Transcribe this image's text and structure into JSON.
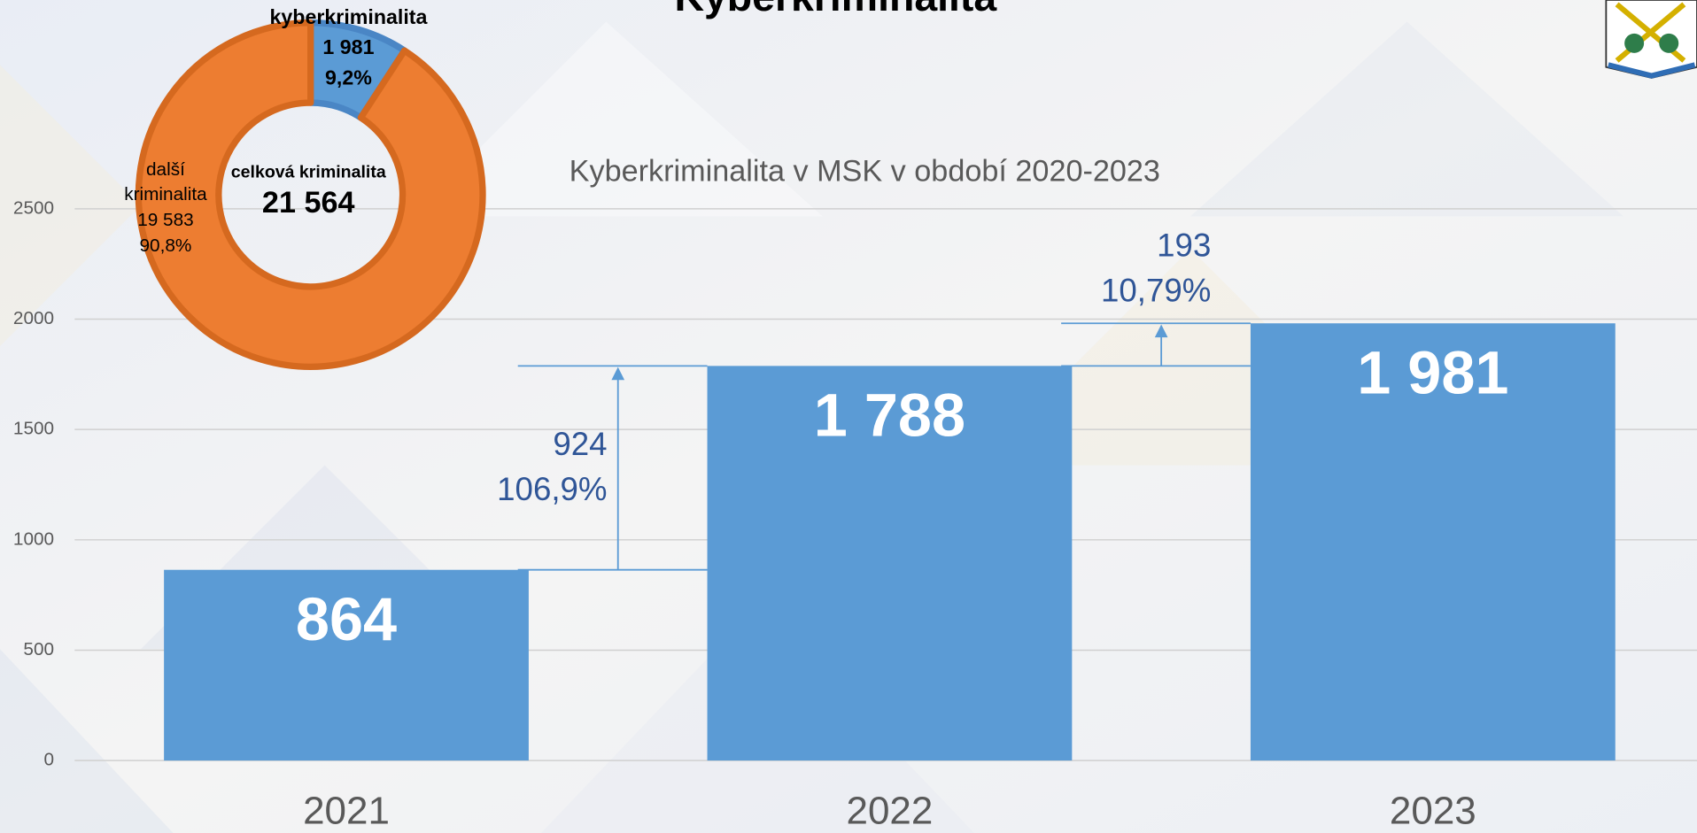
{
  "chart_data": [
    {
      "type": "bar",
      "title": "Kyberkriminalita",
      "subtitle": "Kyberkriminalita v MSK v období 2020-2023",
      "categories": [
        "2021",
        "2022",
        "2023"
      ],
      "values": [
        864,
        1788,
        1981
      ],
      "value_labels": [
        "864",
        "1 788",
        "1 981"
      ],
      "color": "#5b9bd5",
      "ylim": [
        0,
        2500
      ],
      "yticks": [
        0,
        500,
        1000,
        1500,
        2000,
        2500
      ],
      "grid": true,
      "annotations": [
        [
          "924",
          "106,9%"
        ],
        [
          "193",
          "10,79%"
        ]
      ]
    },
    {
      "type": "pie",
      "categories": [
        "kyberkriminalita",
        "další kriminalita"
      ],
      "values": [
        1981,
        19583
      ],
      "value_labels": [
        "1 981",
        "19 583"
      ],
      "percent_labels": [
        "9,2%",
        "90,8%"
      ],
      "colors": [
        "#5b9bd5",
        "#ed7d31"
      ],
      "center_text": [
        "celková kriminalita",
        "21 564"
      ]
    }
  ]
}
